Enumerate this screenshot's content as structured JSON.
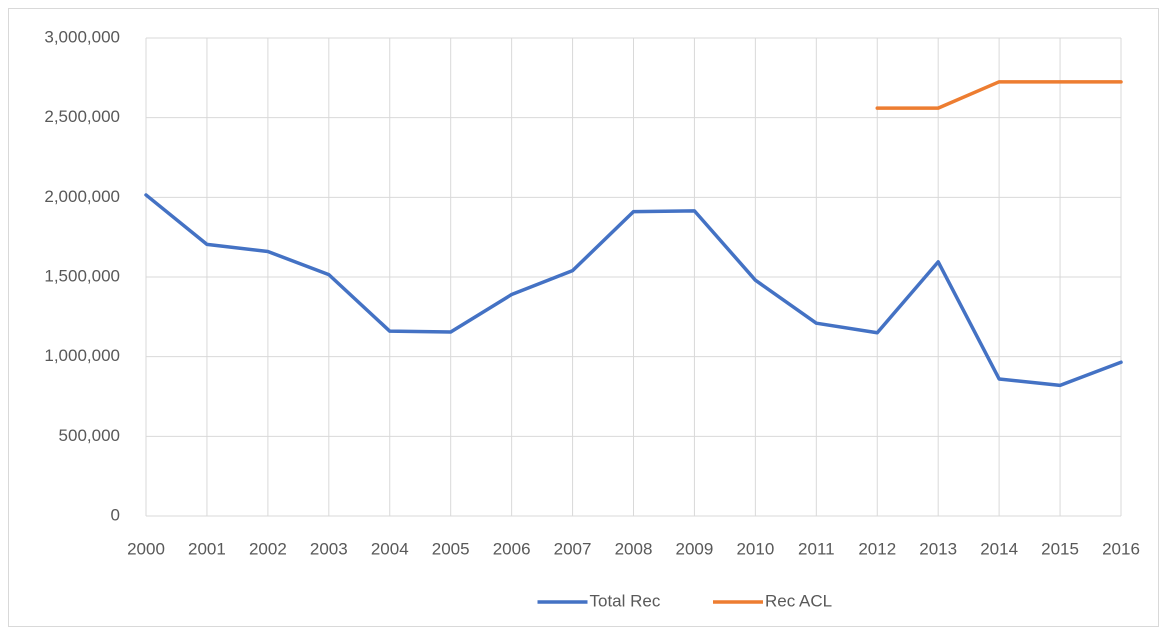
{
  "chart_data": {
    "type": "line",
    "categories": [
      "2000",
      "2001",
      "2002",
      "2003",
      "2004",
      "2005",
      "2006",
      "2007",
      "2008",
      "2009",
      "2010",
      "2011",
      "2012",
      "2013",
      "2014",
      "2015",
      "2016"
    ],
    "series": [
      {
        "name": "Total Rec",
        "color": "#4472c4",
        "values": [
          2015000,
          1705000,
          1660000,
          1515000,
          1160000,
          1155000,
          1390000,
          1540000,
          1910000,
          1915000,
          1480000,
          1210000,
          1150000,
          1595000,
          860000,
          820000,
          965000
        ]
      },
      {
        "name": "Rec ACL",
        "color": "#ed7d31",
        "values": [
          null,
          null,
          null,
          null,
          null,
          null,
          null,
          null,
          null,
          null,
          null,
          null,
          2560000,
          2560000,
          2725000,
          2725000,
          2725000
        ]
      }
    ],
    "ylim": [
      0,
      3000000
    ],
    "yticks": [
      0,
      {
        "value": 500000,
        "label": "500,000"
      },
      {
        "value": 1000000,
        "label": "1,000,000"
      },
      {
        "value": 1500000,
        "label": "1,500,000"
      },
      {
        "value": 2000000,
        "label": "2,000,000"
      },
      {
        "value": 2500000,
        "label": "2,500,000"
      },
      {
        "value": 3000000,
        "label": "3,000,000"
      }
    ],
    "grid": true,
    "legend": "bottom"
  }
}
